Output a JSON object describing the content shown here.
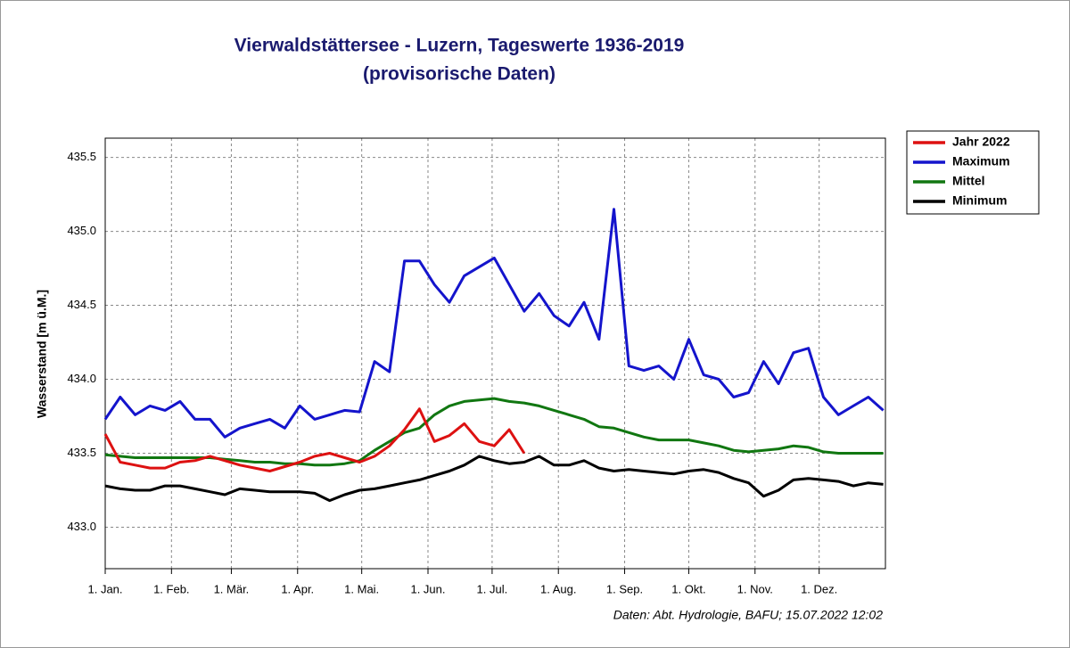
{
  "chart_data": {
    "type": "line",
    "title": "Vierwaldstättersee - Luzern, Tageswerte 1936-2019",
    "subtitle": "(provisorische Daten)",
    "y_label": "Wasserstand [m ü.M.]",
    "source": "Daten: Abt. Hydrologie, BAFU; 15.07.2022 12:02",
    "xlim": [
      0,
      365
    ],
    "xticks": [
      {
        "value": 0,
        "label": "1. Jan."
      },
      {
        "value": 31,
        "label": "1. Feb."
      },
      {
        "value": 59,
        "label": "1. Mär."
      },
      {
        "value": 90,
        "label": "1. Apr."
      },
      {
        "value": 120,
        "label": "1. Mai."
      },
      {
        "value": 151,
        "label": "1. Jun."
      },
      {
        "value": 181,
        "label": "1. Jul."
      },
      {
        "value": 212,
        "label": "1. Aug."
      },
      {
        "value": 243,
        "label": "1. Sep."
      },
      {
        "value": 273,
        "label": "1. Okt."
      },
      {
        "value": 304,
        "label": "1. Nov."
      },
      {
        "value": 334,
        "label": "1. Dez."
      }
    ],
    "ylim": [
      432.72,
      435.63
    ],
    "yticks": [
      {
        "value": 433,
        "label": "433.0"
      },
      433.5,
      {
        "value": 434,
        "label": "434.0"
      },
      434.5,
      {
        "value": 435,
        "label": "435.0"
      },
      435.5
    ],
    "grid": true,
    "legend": "outside-right",
    "x": [
      0,
      7,
      14,
      21,
      28,
      35,
      42,
      49,
      56,
      63,
      70,
      77,
      84,
      91,
      98,
      105,
      112,
      119,
      126,
      133,
      140,
      147,
      154,
      161,
      168,
      175,
      182,
      189,
      196,
      203,
      210,
      217,
      224,
      231,
      238,
      245,
      252,
      259,
      266,
      273,
      280,
      287,
      294,
      301,
      308,
      315,
      322,
      329,
      336,
      343,
      350,
      357,
      364
    ],
    "series": [
      {
        "name": "Jahr 2022",
        "color": "#dd1111",
        "values": [
          433.63,
          433.44,
          433.42,
          433.4,
          433.4,
          433.44,
          433.45,
          433.48,
          433.45,
          433.42,
          433.4,
          433.38,
          433.41,
          433.44,
          433.48,
          433.5,
          433.47,
          433.44,
          433.48,
          433.55,
          433.66,
          433.8,
          433.58,
          433.62,
          433.7,
          433.58,
          433.55,
          433.66,
          433.5,
          null,
          null,
          null,
          null,
          null,
          null,
          null,
          null,
          null,
          null,
          null,
          null,
          null,
          null,
          null,
          null,
          null,
          null,
          null,
          null,
          null,
          null,
          null,
          null
        ]
      },
      {
        "name": "Maximum",
        "color": "#1414cc",
        "values": [
          433.73,
          433.88,
          433.76,
          433.82,
          433.79,
          433.85,
          433.73,
          433.73,
          433.61,
          433.67,
          433.7,
          433.73,
          433.67,
          433.82,
          433.73,
          433.76,
          433.79,
          433.78,
          434.12,
          434.05,
          434.8,
          434.8,
          434.64,
          434.52,
          434.7,
          434.76,
          434.82,
          434.64,
          434.46,
          434.58,
          434.43,
          434.36,
          434.52,
          434.27,
          435.15,
          434.09,
          434.06,
          434.09,
          434.0,
          434.27,
          434.03,
          434.0,
          433.88,
          433.91,
          434.12,
          433.97,
          434.18,
          434.21,
          433.88,
          433.76,
          433.82,
          433.88,
          433.79
        ]
      },
      {
        "name": "Mittel",
        "color": "#117711",
        "values": [
          433.49,
          433.48,
          433.47,
          433.47,
          433.47,
          433.47,
          433.47,
          433.47,
          433.46,
          433.45,
          433.44,
          433.44,
          433.43,
          433.43,
          433.42,
          433.42,
          433.43,
          433.45,
          433.52,
          433.58,
          433.64,
          433.67,
          433.76,
          433.82,
          433.85,
          433.86,
          433.87,
          433.85,
          433.84,
          433.82,
          433.79,
          433.76,
          433.73,
          433.68,
          433.67,
          433.64,
          433.61,
          433.59,
          433.59,
          433.59,
          433.57,
          433.55,
          433.52,
          433.51,
          433.52,
          433.53,
          433.55,
          433.54,
          433.51,
          433.5,
          433.5,
          433.5,
          433.5
        ]
      },
      {
        "name": "Minimum",
        "color": "#000000",
        "values": [
          433.28,
          433.26,
          433.25,
          433.25,
          433.28,
          433.28,
          433.26,
          433.24,
          433.22,
          433.26,
          433.25,
          433.24,
          433.24,
          433.24,
          433.23,
          433.18,
          433.22,
          433.25,
          433.26,
          433.28,
          433.3,
          433.32,
          433.35,
          433.38,
          433.42,
          433.48,
          433.45,
          433.43,
          433.44,
          433.48,
          433.42,
          433.42,
          433.45,
          433.4,
          433.38,
          433.39,
          433.38,
          433.37,
          433.36,
          433.38,
          433.39,
          433.37,
          433.33,
          433.3,
          433.21,
          433.25,
          433.32,
          433.33,
          433.32,
          433.31,
          433.28,
          433.3,
          433.29
        ]
      }
    ]
  }
}
